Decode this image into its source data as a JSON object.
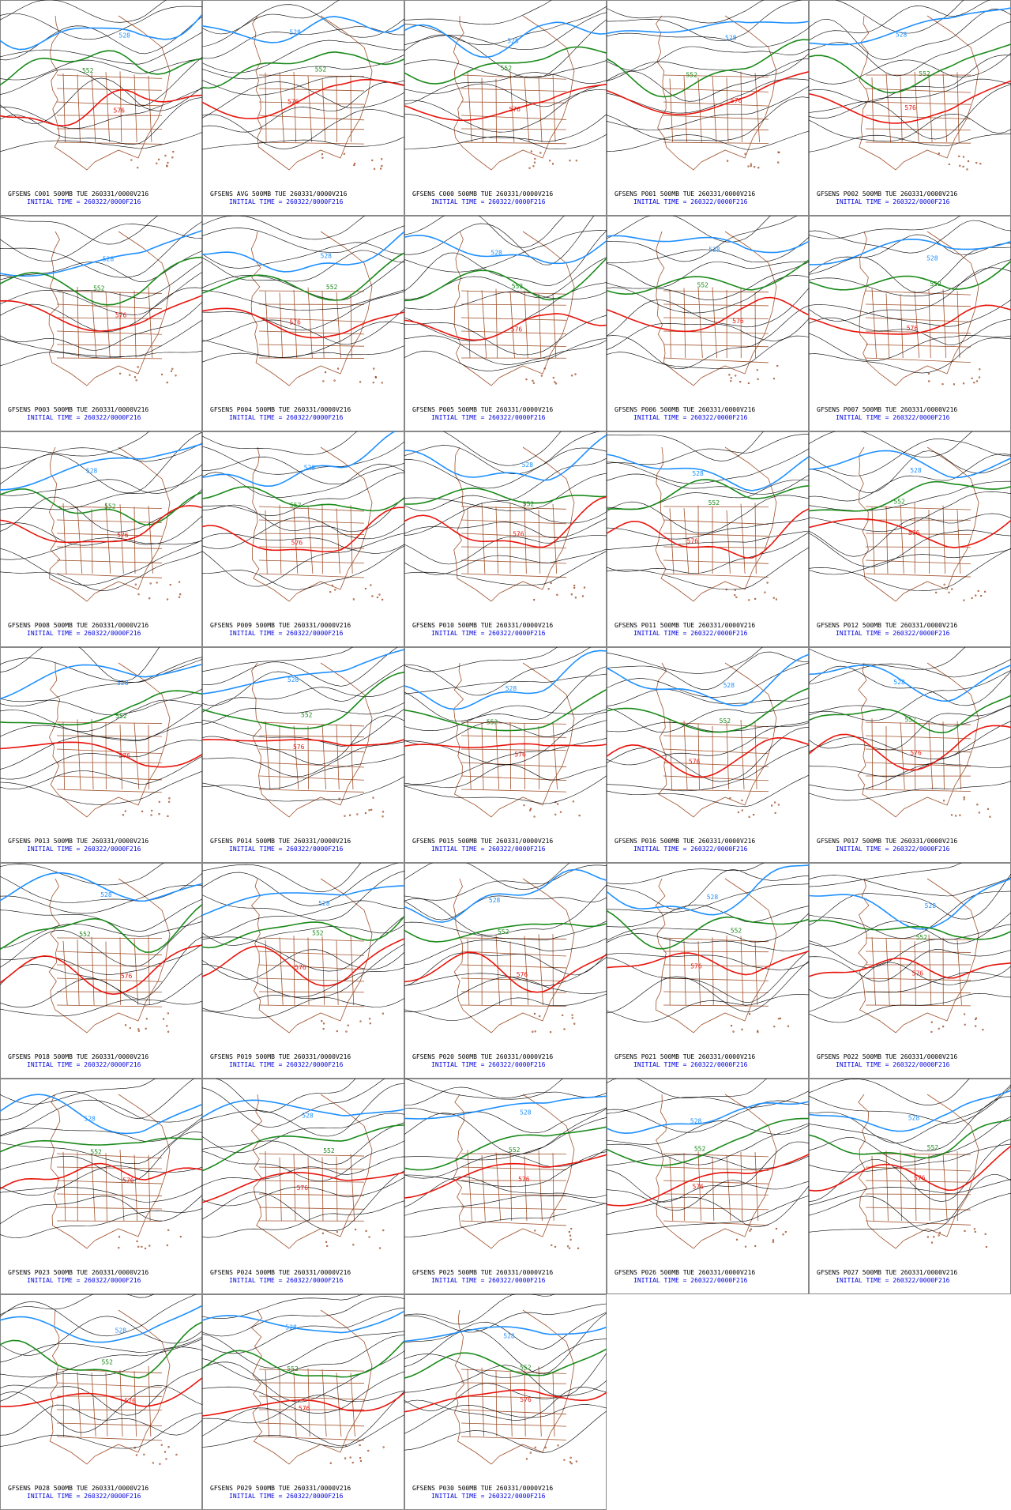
{
  "panels": [
    {
      "title": "GFSENS C001 500MB TUE 260331/0000V216",
      "initial_time": "INITIAL TIME = 260322/0000F216",
      "contour_labels": [
        "528",
        "552",
        "576"
      ]
    },
    {
      "title": "GFSENS AVG 500MB TUE 260331/0000V216",
      "initial_time": "INITIAL TIME = 260322/0000F216",
      "contour_labels": [
        "528",
        "552",
        "576"
      ]
    },
    {
      "title": "GFSENS C000 500MB TUE 260331/0000V216",
      "initial_time": "INITIAL TIME = 260322/0000F216",
      "contour_labels": [
        "528",
        "552",
        "576"
      ]
    },
    {
      "title": "GFSENS P001 500MB TUE 260331/0000V216",
      "initial_time": "INITIAL TIME = 260322/0000F216",
      "contour_labels": [
        "528",
        "552",
        "576"
      ]
    },
    {
      "title": "GFSENS P002 500MB TUE 260331/0000V216",
      "initial_time": "INITIAL TIME = 260322/0000F216",
      "contour_labels": [
        "528",
        "552",
        "576"
      ]
    },
    {
      "title": "GFSENS P003 500MB TUE 260331/0000V216",
      "initial_time": "INITIAL TIME = 260322/0000F216",
      "contour_labels": [
        "528",
        "552",
        "576"
      ]
    },
    {
      "title": "GFSENS P004 500MB TUE 260331/0000V216",
      "initial_time": "INITIAL TIME = 260322/0000F216",
      "contour_labels": [
        "528",
        "552",
        "576"
      ]
    },
    {
      "title": "GFSENS P005 500MB TUE 260331/0000V216",
      "initial_time": "INITIAL TIME = 260322/0000F216",
      "contour_labels": [
        "528",
        "552",
        "576"
      ]
    },
    {
      "title": "GFSENS P006 500MB TUE 260331/0000V216",
      "initial_time": "INITIAL TIME = 260322/0000F216",
      "contour_labels": [
        "528",
        "552",
        "576"
      ]
    },
    {
      "title": "GFSENS P007 500MB TUE 260331/0000V216",
      "initial_time": "INITIAL TIME = 260322/0000F216",
      "contour_labels": [
        "528",
        "552",
        "576"
      ]
    },
    {
      "title": "GFSENS P008 500MB TUE 260331/0000V216",
      "initial_time": "INITIAL TIME = 260322/0000F216",
      "contour_labels": [
        "528",
        "552",
        "576"
      ]
    },
    {
      "title": "GFSENS P009 500MB TUE 260331/0000V216",
      "initial_time": "INITIAL TIME = 260322/0000F216",
      "contour_labels": [
        "528",
        "552",
        "576"
      ]
    },
    {
      "title": "GFSENS P010 500MB TUE 260331/0000V216",
      "initial_time": "INITIAL TIME = 260322/0000F216",
      "contour_labels": [
        "528",
        "552",
        "576"
      ]
    },
    {
      "title": "GFSENS P011 500MB TUE 260331/0000V216",
      "initial_time": "INITIAL TIME = 260322/0000F216",
      "contour_labels": [
        "528",
        "552",
        "576"
      ]
    },
    {
      "title": "GFSENS P012 500MB TUE 260331/0000V216",
      "initial_time": "INITIAL TIME = 260322/0000F216",
      "contour_labels": [
        "528",
        "552",
        "576"
      ]
    },
    {
      "title": "GFSENS P013 500MB TUE 260331/0000V216",
      "initial_time": "INITIAL TIME = 260322/0000F216",
      "contour_labels": [
        "528",
        "552",
        "576"
      ]
    },
    {
      "title": "GFSENS P014 500MB TUE 260331/0000V216",
      "initial_time": "INITIAL TIME = 260322/0000F216",
      "contour_labels": [
        "528",
        "552",
        "576"
      ]
    },
    {
      "title": "GFSENS P015 500MB TUE 260331/0000V216",
      "initial_time": "INITIAL TIME = 260322/0000F216",
      "contour_labels": [
        "528",
        "552",
        "576"
      ]
    },
    {
      "title": "GFSENS P016 500MB TUE 260331/0000V216",
      "initial_time": "INITIAL TIME = 260322/0000F216",
      "contour_labels": [
        "528",
        "552",
        "576"
      ]
    },
    {
      "title": "GFSENS P017 500MB TUE 260331/0000V216",
      "initial_time": "INITIAL TIME = 260322/0000F216",
      "contour_labels": [
        "528",
        "552",
        "576"
      ]
    },
    {
      "title": "GFSENS P018 500MB TUE 260331/0000V216",
      "initial_time": "INITIAL TIME = 260322/0000F216",
      "contour_labels": [
        "528",
        "552",
        "576"
      ]
    },
    {
      "title": "GFSENS P019 500MB TUE 260331/0000V216",
      "initial_time": "INITIAL TIME = 260322/0000F216",
      "contour_labels": [
        "528",
        "552",
        "576"
      ]
    },
    {
      "title": "GFSENS P020 500MB TUE 260331/0000V216",
      "initial_time": "INITIAL TIME = 260322/0000F216",
      "contour_labels": [
        "528",
        "552",
        "576"
      ]
    },
    {
      "title": "GFSENS P021 500MB TUE 260331/0000V216",
      "initial_time": "INITIAL TIME = 260322/0000F216",
      "contour_labels": [
        "528",
        "552",
        "576"
      ]
    },
    {
      "title": "GFSENS P022 500MB TUE 260331/0000V216",
      "initial_time": "INITIAL TIME = 260322/0000F216",
      "contour_labels": [
        "528",
        "552",
        "576"
      ]
    },
    {
      "title": "GFSENS P023 500MB TUE 260331/0000V216",
      "initial_time": "INITIAL TIME = 260322/0000F216",
      "contour_labels": [
        "528",
        "552",
        "576"
      ]
    },
    {
      "title": "GFSENS P024 500MB TUE 260331/0000V216",
      "initial_time": "INITIAL TIME = 260322/0000F216",
      "contour_labels": [
        "528",
        "552",
        "576"
      ]
    },
    {
      "title": "GFSENS P025 500MB TUE 260331/0000V216",
      "initial_time": "INITIAL TIME = 260322/0000F216",
      "contour_labels": [
        "528",
        "552",
        "576"
      ]
    },
    {
      "title": "GFSENS P026 500MB TUE 260331/0000V216",
      "initial_time": "INITIAL TIME = 260322/0000F216",
      "contour_labels": [
        "528",
        "552",
        "576"
      ]
    },
    {
      "title": "GFSENS P027 500MB TUE 260331/0000V216",
      "initial_time": "INITIAL TIME = 260322/0000F216",
      "contour_labels": [
        "528",
        "552",
        "576"
      ]
    },
    {
      "title": "GFSENS P028 500MB TUE 260331/0000V216",
      "initial_time": "INITIAL TIME = 260322/0000F216",
      "contour_labels": [
        "528",
        "552",
        "576"
      ]
    },
    {
      "title": "GFSENS P029 500MB TUE 260331/0000V216",
      "initial_time": "INITIAL TIME = 260322/0000F216",
      "contour_labels": [
        "528",
        "552",
        "576"
      ]
    },
    {
      "title": "GFSENS P030 500MB TUE 260331/0000V216",
      "initial_time": "INITIAL TIME = 260322/0000F216",
      "contour_labels": [
        "528",
        "552",
        "576"
      ]
    }
  ]
}
